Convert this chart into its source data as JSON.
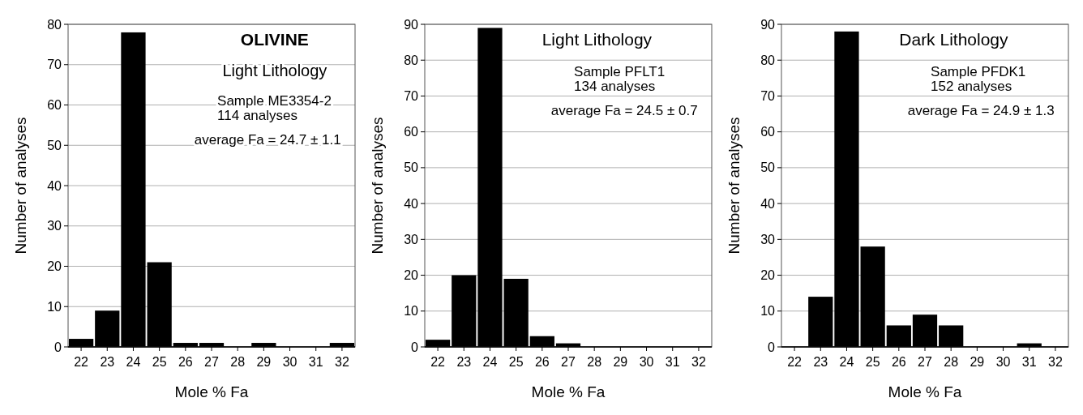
{
  "chart_data": [
    {
      "type": "bar",
      "title": "OLIVINE",
      "subtitle": "Light Lithology",
      "xlabel": "Mole % Fa",
      "ylabel": "Number of analyses",
      "categories": [
        "22",
        "23",
        "24",
        "25",
        "26",
        "27",
        "28",
        "29",
        "30",
        "31",
        "32"
      ],
      "values": [
        2,
        9,
        78,
        21,
        1,
        1,
        0,
        1,
        0,
        0,
        1
      ],
      "color": "#000000",
      "ylim": [
        0,
        80
      ],
      "yticks": [
        0,
        10,
        20,
        30,
        40,
        50,
        60,
        70,
        80
      ],
      "grid": "y",
      "annotations": [
        "Sample ME3354-2",
        "114 analyses",
        "average Fa = 24.7 ± 1.1"
      ]
    },
    {
      "type": "bar",
      "title": "Light Lithology",
      "xlabel": "Mole % Fa",
      "ylabel": "Number of analyses",
      "categories": [
        "22",
        "23",
        "24",
        "25",
        "26",
        "27",
        "28",
        "29",
        "30",
        "31",
        "32"
      ],
      "values": [
        2,
        20,
        89,
        19,
        3,
        1,
        0,
        0,
        0,
        0,
        0
      ],
      "color": "#000000",
      "ylim": [
        0,
        90
      ],
      "yticks": [
        0,
        10,
        20,
        30,
        40,
        50,
        60,
        70,
        80,
        90
      ],
      "grid": "y",
      "annotations": [
        "Sample PFLT1",
        "134 analyses",
        "average Fa = 24.5 ± 0.7"
      ]
    },
    {
      "type": "bar",
      "title": "Dark Lithology",
      "xlabel": "Mole % Fa",
      "ylabel": "Number of analyses",
      "categories": [
        "22",
        "23",
        "24",
        "25",
        "26",
        "27",
        "28",
        "29",
        "30",
        "31",
        "32"
      ],
      "values": [
        0,
        14,
        88,
        28,
        6,
        9,
        6,
        0,
        0,
        1,
        0
      ],
      "color": "#000000",
      "ylim": [
        0,
        90
      ],
      "yticks": [
        0,
        10,
        20,
        30,
        40,
        50,
        60,
        70,
        80,
        90
      ],
      "grid": "y",
      "annotations": [
        "Sample PFDK1",
        "152 analyses",
        "average Fa =  24.9 ± 1.3"
      ]
    }
  ]
}
